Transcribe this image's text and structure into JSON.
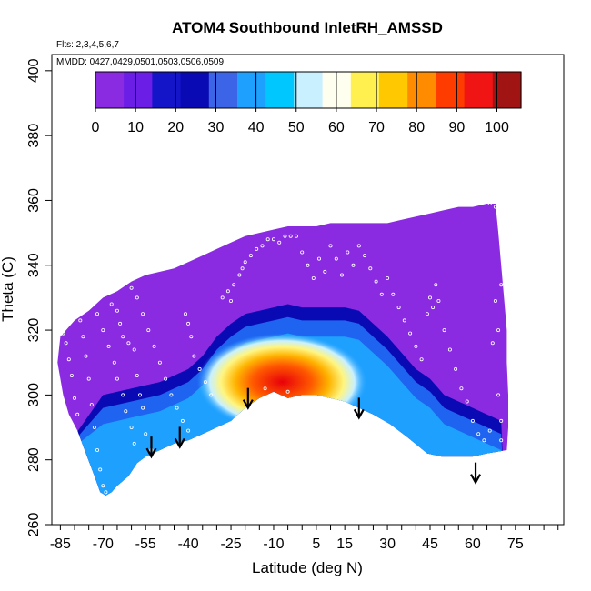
{
  "chart_data": {
    "type": "heatmap",
    "title": "ATOM4 Southbound InletRH_AMSSD",
    "subtitle_flights": "Flts: 2,3,4,5,6,7",
    "subtitle_dates": "MMDD: 0427,0429,0501,0503,0506,0509",
    "xlabel": "Latitude (deg N)",
    "ylabel": "Theta (C)",
    "xlim": [
      -88,
      92
    ],
    "ylim": [
      260,
      405
    ],
    "x_ticks": [
      -85,
      -70,
      -55,
      -40,
      -25,
      -10,
      5,
      15,
      30,
      45,
      60,
      75
    ],
    "y_ticks": [
      260,
      280,
      300,
      320,
      340,
      360,
      380,
      400
    ],
    "colorbar": {
      "range": [
        0,
        106
      ],
      "ticks": [
        0,
        10,
        20,
        30,
        40,
        50,
        60,
        70,
        80,
        90,
        100
      ],
      "colors": [
        "#8a2be2",
        "#6a1ee6",
        "#1414c8",
        "#0a0ab4",
        "#3c64e6",
        "#1ea0ff",
        "#00c8ff",
        "#c8f0ff",
        "#fffff0",
        "#fff050",
        "#ffc800",
        "#ff8c00",
        "#ff3c00",
        "#f01414",
        "#a01414"
      ]
    },
    "top_boundary": [
      [
        -85,
        318
      ],
      [
        -80,
        323
      ],
      [
        -75,
        326
      ],
      [
        -70,
        330
      ],
      [
        -65,
        332
      ],
      [
        -60,
        335
      ],
      [
        -55,
        337
      ],
      [
        -50,
        338
      ],
      [
        -45,
        339
      ],
      [
        -40,
        341
      ],
      [
        -35,
        343
      ],
      [
        -30,
        345
      ],
      [
        -25,
        347
      ],
      [
        -20,
        349
      ],
      [
        -15,
        350
      ],
      [
        -10,
        351
      ],
      [
        -5,
        352
      ],
      [
        0,
        352
      ],
      [
        5,
        352
      ],
      [
        10,
        353
      ],
      [
        15,
        353
      ],
      [
        20,
        353
      ],
      [
        25,
        353
      ],
      [
        30,
        353
      ],
      [
        35,
        354
      ],
      [
        40,
        355
      ],
      [
        45,
        356
      ],
      [
        50,
        357
      ],
      [
        55,
        358
      ],
      [
        60,
        358
      ],
      [
        65,
        359
      ],
      [
        68,
        359
      ]
    ],
    "right_boundary": [
      [
        68,
        359
      ],
      [
        69,
        350
      ],
      [
        70,
        340
      ],
      [
        71,
        330
      ],
      [
        72,
        320
      ],
      [
        72,
        310
      ],
      [
        72.5,
        300
      ],
      [
        72.5,
        290
      ],
      [
        72,
        283
      ]
    ],
    "bottom_boundary": [
      [
        72,
        283
      ],
      [
        65,
        282
      ],
      [
        60,
        281
      ],
      [
        55,
        281
      ],
      [
        49,
        281
      ],
      [
        44,
        282
      ],
      [
        37,
        287
      ],
      [
        31,
        291
      ],
      [
        25,
        294
      ],
      [
        20,
        296
      ],
      [
        15,
        298
      ],
      [
        10,
        299
      ],
      [
        5,
        300
      ],
      [
        0,
        300
      ],
      [
        -5,
        299
      ],
      [
        -10,
        301
      ],
      [
        -15,
        299
      ],
      [
        -20,
        296
      ],
      [
        -25,
        292
      ],
      [
        -30,
        290
      ],
      [
        -35,
        288
      ],
      [
        -40,
        286
      ],
      [
        -45,
        285
      ],
      [
        -50,
        283
      ],
      [
        -55,
        281
      ],
      [
        -58,
        279
      ],
      [
        -61,
        275
      ],
      [
        -65,
        272
      ],
      [
        -67,
        270
      ],
      [
        -69,
        269
      ],
      [
        -71,
        270
      ],
      [
        -73,
        275
      ],
      [
        -76,
        282
      ],
      [
        -79,
        289
      ],
      [
        -82,
        294
      ],
      [
        -84,
        300
      ],
      [
        -86,
        310
      ]
    ],
    "ridge": [
      [
        -70,
        300
      ],
      [
        -60,
        302
      ],
      [
        -50,
        304
      ],
      [
        -40,
        308
      ],
      [
        -35,
        312
      ],
      [
        -30,
        318
      ],
      [
        -25,
        322
      ],
      [
        -20,
        325
      ],
      [
        -15,
        326
      ],
      [
        -10,
        327
      ],
      [
        -5,
        328
      ],
      [
        0,
        327
      ],
      [
        5,
        327
      ],
      [
        10,
        327
      ],
      [
        15,
        327
      ],
      [
        20,
        326
      ],
      [
        25,
        322
      ],
      [
        30,
        318
      ],
      [
        35,
        313
      ],
      [
        40,
        308
      ],
      [
        45,
        305
      ],
      [
        50,
        300
      ],
      [
        55,
        298
      ],
      [
        60,
        296
      ],
      [
        65,
        294
      ],
      [
        70,
        292
      ]
    ],
    "wet_core": {
      "center": [
        -7,
        304
      ],
      "peak_rh": 96
    },
    "arrows_x": [
      -53,
      -43,
      -19,
      20,
      61
    ],
    "arrows_tip_theta": [
      281,
      284,
      296,
      293,
      273
    ],
    "sample_points": [
      [
        -84,
        319
      ],
      [
        -83,
        316
      ],
      [
        -82,
        311
      ],
      [
        -81,
        306
      ],
      [
        -80,
        299
      ],
      [
        -79,
        294
      ],
      [
        -78,
        323
      ],
      [
        -77,
        318
      ],
      [
        -76,
        312
      ],
      [
        -75,
        305
      ],
      [
        -74,
        297
      ],
      [
        -73,
        290
      ],
      [
        -72,
        283
      ],
      [
        -71,
        277
      ],
      [
        -70,
        272
      ],
      [
        -69,
        270
      ],
      [
        -72,
        325
      ],
      [
        -70,
        320
      ],
      [
        -68,
        315
      ],
      [
        -66,
        310
      ],
      [
        -65,
        305
      ],
      [
        -63,
        300
      ],
      [
        -62,
        295
      ],
      [
        -60,
        290
      ],
      [
        -59,
        285
      ],
      [
        -67,
        328
      ],
      [
        -65,
        326
      ],
      [
        -64,
        322
      ],
      [
        -63,
        318
      ],
      [
        -61,
        316
      ],
      [
        -59,
        314
      ],
      [
        -58,
        306
      ],
      [
        -57,
        300
      ],
      [
        -56,
        296
      ],
      [
        -55,
        288
      ],
      [
        -53,
        283
      ],
      [
        -60,
        333
      ],
      [
        -58,
        330
      ],
      [
        -56,
        325
      ],
      [
        -54,
        320
      ],
      [
        -52,
        315
      ],
      [
        -50,
        310
      ],
      [
        -48,
        305
      ],
      [
        -46,
        300
      ],
      [
        -44,
        296
      ],
      [
        -42,
        292
      ],
      [
        -40,
        289
      ],
      [
        -41,
        325
      ],
      [
        -40,
        322
      ],
      [
        -39,
        318
      ],
      [
        -38,
        312
      ],
      [
        -36,
        308
      ],
      [
        -34,
        304
      ],
      [
        -32,
        300
      ],
      [
        -28,
        330
      ],
      [
        -26,
        332
      ],
      [
        -25,
        329
      ],
      [
        -24,
        334
      ],
      [
        -22,
        337
      ],
      [
        -21,
        339
      ],
      [
        -20,
        341
      ],
      [
        -18,
        343
      ],
      [
        -16,
        345
      ],
      [
        -14,
        346
      ],
      [
        -12,
        348
      ],
      [
        -10,
        348
      ],
      [
        -8,
        347
      ],
      [
        -6,
        349
      ],
      [
        -4,
        349
      ],
      [
        -2,
        349
      ],
      [
        0,
        344
      ],
      [
        2,
        340
      ],
      [
        4,
        336
      ],
      [
        6,
        342
      ],
      [
        8,
        338
      ],
      [
        10,
        346
      ],
      [
        12,
        342
      ],
      [
        14,
        337
      ],
      [
        16,
        344
      ],
      [
        18,
        340
      ],
      [
        20,
        346
      ],
      [
        22,
        343
      ],
      [
        24,
        339
      ],
      [
        26,
        335
      ],
      [
        28,
        331
      ],
      [
        30,
        336
      ],
      [
        32,
        331
      ],
      [
        34,
        327
      ],
      [
        36,
        323
      ],
      [
        38,
        319
      ],
      [
        40,
        315
      ],
      [
        42,
        311
      ],
      [
        44,
        325
      ],
      [
        45,
        330
      ],
      [
        46,
        327
      ],
      [
        47,
        334
      ],
      [
        48,
        329
      ],
      [
        50,
        320
      ],
      [
        52,
        314
      ],
      [
        54,
        308
      ],
      [
        56,
        302
      ],
      [
        58,
        298
      ],
      [
        60,
        292
      ],
      [
        62,
        288
      ],
      [
        64,
        286
      ],
      [
        66,
        289
      ],
      [
        67,
        316
      ],
      [
        68,
        329
      ],
      [
        69,
        320
      ],
      [
        69,
        300
      ],
      [
        70,
        292
      ],
      [
        70,
        286
      ],
      [
        68,
        358
      ],
      [
        66,
        359
      ],
      [
        70,
        334
      ],
      [
        -13,
        302
      ],
      [
        -5,
        301
      ]
    ]
  }
}
